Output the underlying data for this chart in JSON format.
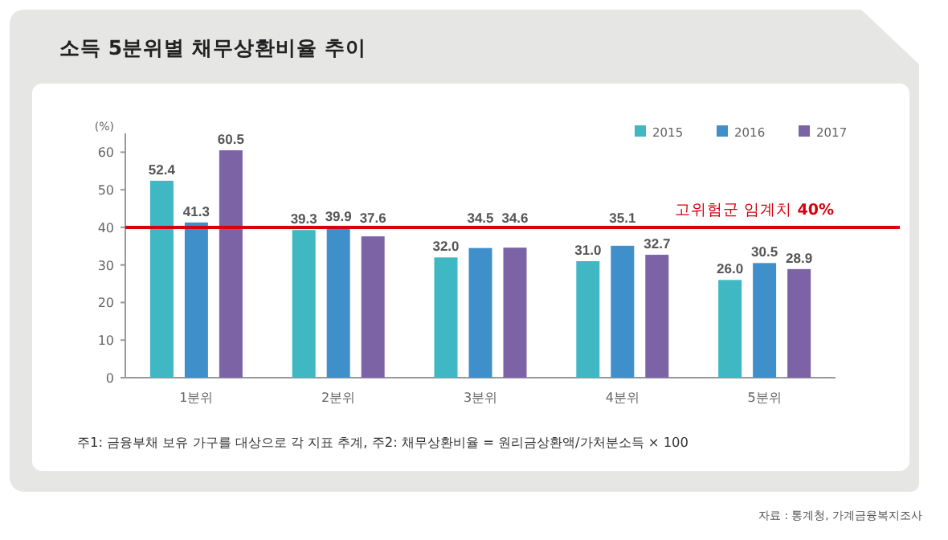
{
  "chart_data": {
    "type": "bar",
    "title": "소득 5분위별 채무상환비율 추이",
    "ylabel": "(%)",
    "categories": [
      "1분위",
      "2분위",
      "3분위",
      "4분위",
      "5분위"
    ],
    "series": [
      {
        "name": "2015",
        "color": "#3fb8c4",
        "values": [
          52.4,
          39.3,
          32.0,
          31.0,
          26.0
        ],
        "value_labels": [
          "52.4",
          "39.3",
          "32.0",
          "31.0",
          "26.0"
        ]
      },
      {
        "name": "2016",
        "color": "#3f8fcb",
        "values": [
          41.3,
          39.9,
          34.5,
          35.1,
          30.5
        ],
        "value_labels": [
          "41.3",
          "39.9",
          "34.5",
          "35.1",
          "30.5"
        ]
      },
      {
        "name": "2017",
        "color": "#7b63a6",
        "values": [
          60.5,
          37.6,
          34.6,
          32.7,
          28.9
        ],
        "value_labels": [
          "60.5",
          "37.6",
          "34.6",
          "32.7",
          "28.9"
        ]
      }
    ],
    "ylim": [
      0,
      65
    ],
    "yticks": [
      0,
      10,
      20,
      30,
      40,
      50,
      60
    ],
    "legend": "top right",
    "ref_lines": [
      {
        "axis": "y",
        "value": 40,
        "label": "고위험군 임계치 **40%**",
        "color": "#d7000f"
      }
    ],
    "annotations": [
      "주1: 금융부채 보유 가구를 대상으로 각 지표 추계,  주2: 채무상환비율 = 원리금상환액/가처분소득 × 100",
      "자료 : 통계청, 가계금융복지조사"
    ]
  }
}
